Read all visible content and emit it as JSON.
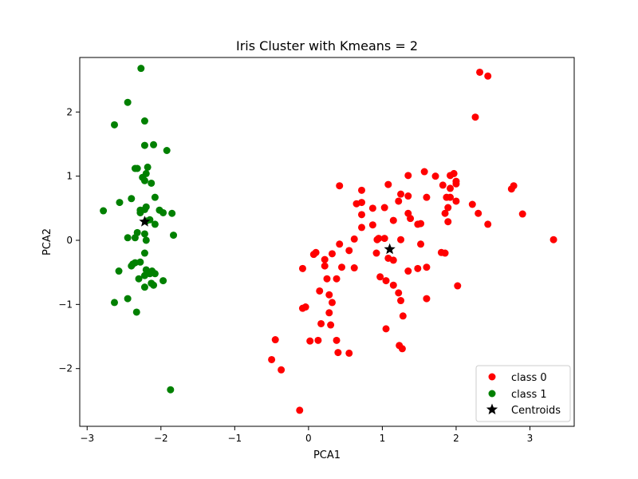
{
  "chart_data": {
    "type": "scatter",
    "title": "Iris Cluster with Kmeans = 2",
    "xlabel": "PCA1",
    "ylabel": "PCA2",
    "xlim": [
      -3.1,
      3.6
    ],
    "ylim": [
      -2.9,
      2.85
    ],
    "xticks": [
      -3,
      -2,
      -1,
      0,
      1,
      2,
      3
    ],
    "yticks": [
      -2,
      -1,
      0,
      1,
      2
    ],
    "grid": false,
    "legend_position": "lower-right",
    "series": [
      {
        "name": "class 0",
        "color": "#ff0000",
        "marker": "circle",
        "points": [
          [
            2.32,
            2.62
          ],
          [
            2.43,
            2.56
          ],
          [
            2.26,
            1.92
          ],
          [
            1.57,
            1.07
          ],
          [
            1.72,
            1.0
          ],
          [
            1.92,
            1.01
          ],
          [
            1.97,
            1.04
          ],
          [
            1.35,
            1.01
          ],
          [
            2.0,
            0.92
          ],
          [
            2.0,
            0.88
          ],
          [
            1.82,
            0.86
          ],
          [
            1.92,
            0.81
          ],
          [
            1.08,
            0.87
          ],
          [
            0.42,
            0.85
          ],
          [
            0.72,
            0.78
          ],
          [
            2.75,
            0.8
          ],
          [
            2.78,
            0.85
          ],
          [
            1.25,
            0.72
          ],
          [
            1.35,
            0.69
          ],
          [
            1.87,
            0.67
          ],
          [
            1.92,
            0.67
          ],
          [
            1.6,
            0.67
          ],
          [
            0.72,
            0.59
          ],
          [
            0.65,
            0.57
          ],
          [
            2.0,
            0.61
          ],
          [
            2.22,
            0.56
          ],
          [
            1.22,
            0.61
          ],
          [
            1.89,
            0.51
          ],
          [
            0.87,
            0.5
          ],
          [
            1.03,
            0.51
          ],
          [
            1.85,
            0.42
          ],
          [
            2.3,
            0.42
          ],
          [
            2.9,
            0.41
          ],
          [
            0.72,
            0.4
          ],
          [
            1.35,
            0.42
          ],
          [
            1.38,
            0.34
          ],
          [
            1.89,
            0.29
          ],
          [
            1.15,
            0.31
          ],
          [
            1.48,
            0.25
          ],
          [
            1.52,
            0.26
          ],
          [
            2.43,
            0.25
          ],
          [
            0.87,
            0.24
          ],
          [
            0.72,
            0.2
          ],
          [
            0.95,
            0.03
          ],
          [
            0.93,
            0.01
          ],
          [
            1.03,
            0.03
          ],
          [
            0.62,
            0.02
          ],
          [
            1.25,
            0.01
          ],
          [
            3.32,
            0.01
          ],
          [
            0.42,
            -0.06
          ],
          [
            1.52,
            -0.06
          ],
          [
            0.55,
            -0.16
          ],
          [
            0.1,
            -0.19
          ],
          [
            0.07,
            -0.22
          ],
          [
            0.92,
            -0.2
          ],
          [
            1.8,
            -0.19
          ],
          [
            1.85,
            -0.2
          ],
          [
            1.08,
            -0.28
          ],
          [
            0.32,
            -0.21
          ],
          [
            1.15,
            -0.31
          ],
          [
            0.22,
            -0.3
          ],
          [
            1.35,
            -0.48
          ],
          [
            1.48,
            -0.44
          ],
          [
            1.6,
            -0.42
          ],
          [
            0.62,
            -0.43
          ],
          [
            0.45,
            -0.42
          ],
          [
            0.22,
            -0.4
          ],
          [
            -0.08,
            -0.44
          ],
          [
            0.97,
            -0.57
          ],
          [
            1.05,
            -0.63
          ],
          [
            0.38,
            -0.6
          ],
          [
            0.25,
            -0.6
          ],
          [
            1.15,
            -0.7
          ],
          [
            2.02,
            -0.71
          ],
          [
            0.15,
            -0.79
          ],
          [
            0.28,
            -0.85
          ],
          [
            1.22,
            -0.82
          ],
          [
            1.25,
            -0.94
          ],
          [
            1.6,
            -0.91
          ],
          [
            0.32,
            -0.97
          ],
          [
            -0.04,
            -1.04
          ],
          [
            -0.08,
            -1.06
          ],
          [
            0.28,
            -1.13
          ],
          [
            0.17,
            -1.3
          ],
          [
            1.05,
            -1.38
          ],
          [
            0.3,
            -1.32
          ],
          [
            1.28,
            -1.18
          ],
          [
            0.02,
            -1.57
          ],
          [
            0.13,
            -1.56
          ],
          [
            0.38,
            -1.56
          ],
          [
            1.23,
            -1.64
          ],
          [
            1.27,
            -1.69
          ],
          [
            0.4,
            -1.75
          ],
          [
            0.55,
            -1.76
          ],
          [
            -0.45,
            -1.55
          ],
          [
            -0.5,
            -1.86
          ],
          [
            -0.37,
            -2.02
          ],
          [
            -0.12,
            -2.65
          ]
        ]
      },
      {
        "name": "class 1",
        "color": "#008000",
        "marker": "circle",
        "points": [
          [
            -2.27,
            2.68
          ],
          [
            -2.45,
            2.15
          ],
          [
            -2.22,
            1.86
          ],
          [
            -2.63,
            1.8
          ],
          [
            -2.22,
            1.48
          ],
          [
            -2.1,
            1.49
          ],
          [
            -1.92,
            1.4
          ],
          [
            -2.35,
            1.12
          ],
          [
            -2.32,
            1.12
          ],
          [
            -2.18,
            1.14
          ],
          [
            -2.2,
            1.04
          ],
          [
            -2.25,
            0.98
          ],
          [
            -2.22,
            0.93
          ],
          [
            -2.13,
            0.89
          ],
          [
            -2.4,
            0.65
          ],
          [
            -2.08,
            0.67
          ],
          [
            -2.56,
            0.59
          ],
          [
            -2.2,
            0.52
          ],
          [
            -2.22,
            0.48
          ],
          [
            -2.28,
            0.47
          ],
          [
            -2.02,
            0.47
          ],
          [
            -1.97,
            0.43
          ],
          [
            -1.85,
            0.42
          ],
          [
            -2.28,
            0.43
          ],
          [
            -2.78,
            0.46
          ],
          [
            -2.15,
            0.32
          ],
          [
            -2.2,
            0.3
          ],
          [
            -2.08,
            0.25
          ],
          [
            -2.32,
            0.12
          ],
          [
            -2.22,
            0.1
          ],
          [
            -2.45,
            0.04
          ],
          [
            -2.35,
            0.04
          ],
          [
            -1.83,
            0.08
          ],
          [
            -2.2,
            0.0
          ],
          [
            -2.22,
            -0.2
          ],
          [
            -2.38,
            -0.37
          ],
          [
            -2.35,
            -0.35
          ],
          [
            -2.28,
            -0.34
          ],
          [
            -2.4,
            -0.4
          ],
          [
            -2.57,
            -0.48
          ],
          [
            -2.2,
            -0.46
          ],
          [
            -2.12,
            -0.48
          ],
          [
            -2.15,
            -0.52
          ],
          [
            -2.08,
            -0.52
          ],
          [
            -2.22,
            -0.55
          ],
          [
            -2.3,
            -0.6
          ],
          [
            -2.13,
            -0.67
          ],
          [
            -2.1,
            -0.7
          ],
          [
            -1.97,
            -0.63
          ],
          [
            -2.22,
            -0.73
          ],
          [
            -2.45,
            -0.91
          ],
          [
            -2.63,
            -0.97
          ],
          [
            -2.33,
            -1.12
          ],
          [
            -1.87,
            -2.33
          ]
        ]
      }
    ],
    "centroids": {
      "name": "Centroids",
      "color": "#000000",
      "marker": "star",
      "points": [
        [
          -2.22,
          0.29
        ],
        [
          1.1,
          -0.14
        ]
      ]
    }
  }
}
